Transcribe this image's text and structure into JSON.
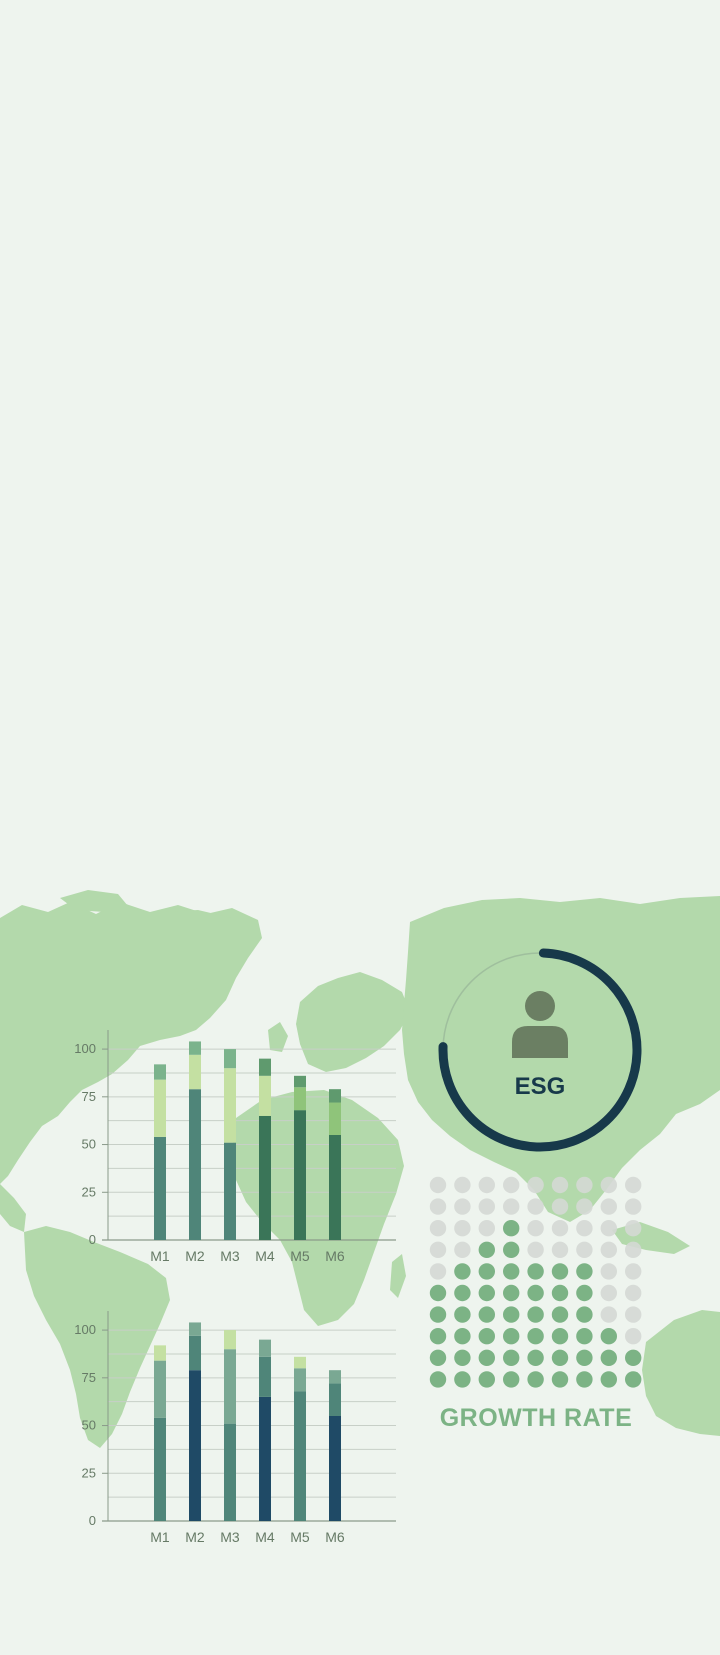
{
  "colors": {
    "background": "#eef4ee",
    "map": "#b3d9ab",
    "axis": "#8a9a8a",
    "grid": "#c7cfc7",
    "ring": "#17394a",
    "ring_track": "#9ab89a",
    "person": "#6b7f63",
    "dot_on": "#7cb385",
    "dot_off": "#d4d8d4"
  },
  "esg_widget": {
    "label": "ESG",
    "icon": "person-icon",
    "progress": 0.75
  },
  "growth_widget": {
    "label": "GROWTH RATE",
    "columns": 9,
    "rows": 10,
    "filled_per_column": [
      5,
      6,
      7,
      8,
      6,
      6,
      6,
      3,
      2
    ]
  },
  "chart_data": [
    {
      "type": "bar",
      "stacked": true,
      "categories": [
        "M1",
        "M2",
        "M3",
        "M4",
        "M5",
        "M6"
      ],
      "ylim": [
        0,
        110
      ],
      "yticks": [
        0,
        25,
        50,
        75,
        100
      ],
      "series": [
        {
          "values": [
            54,
            79,
            51,
            65,
            68,
            55
          ],
          "colors": [
            "#4f8579",
            "#4f8579",
            "#4f8579",
            "#3a7558",
            "#3a7558",
            "#3a7558"
          ]
        },
        {
          "values": [
            30,
            18,
            39,
            21,
            12,
            17
          ],
          "colors": [
            "#c4e0a2",
            "#c4e0a2",
            "#c4e0a2",
            "#c4e0a2",
            "#8fc47a",
            "#8fc47a"
          ]
        },
        {
          "values": [
            8,
            7,
            10,
            9,
            6,
            7
          ],
          "colors": [
            "#7bb38c",
            "#7bb38c",
            "#7bb38c",
            "#5f9a6e",
            "#5f9a6e",
            "#5f9a6e"
          ]
        }
      ]
    },
    {
      "type": "bar",
      "stacked": true,
      "categories": [
        "M1",
        "M2",
        "M3",
        "M4",
        "M5",
        "M6"
      ],
      "ylim": [
        0,
        110
      ],
      "yticks": [
        0,
        25,
        50,
        75,
        100
      ],
      "series": [
        {
          "values": [
            54,
            79,
            51,
            65,
            68,
            55
          ],
          "colors": [
            "#4f8579",
            "#1f4a66",
            "#4f8579",
            "#1f4a66",
            "#4f8579",
            "#1f4a66"
          ]
        },
        {
          "values": [
            30,
            18,
            39,
            21,
            12,
            17
          ],
          "colors": [
            "#7aa893",
            "#4f8579",
            "#7aa893",
            "#4f8579",
            "#7aa893",
            "#4f8579"
          ]
        },
        {
          "values": [
            8,
            7,
            10,
            9,
            6,
            7
          ],
          "colors": [
            "#c4e0a2",
            "#7aa893",
            "#c4e0a2",
            "#7aa893",
            "#c4e0a2",
            "#7aa893"
          ]
        }
      ]
    }
  ]
}
